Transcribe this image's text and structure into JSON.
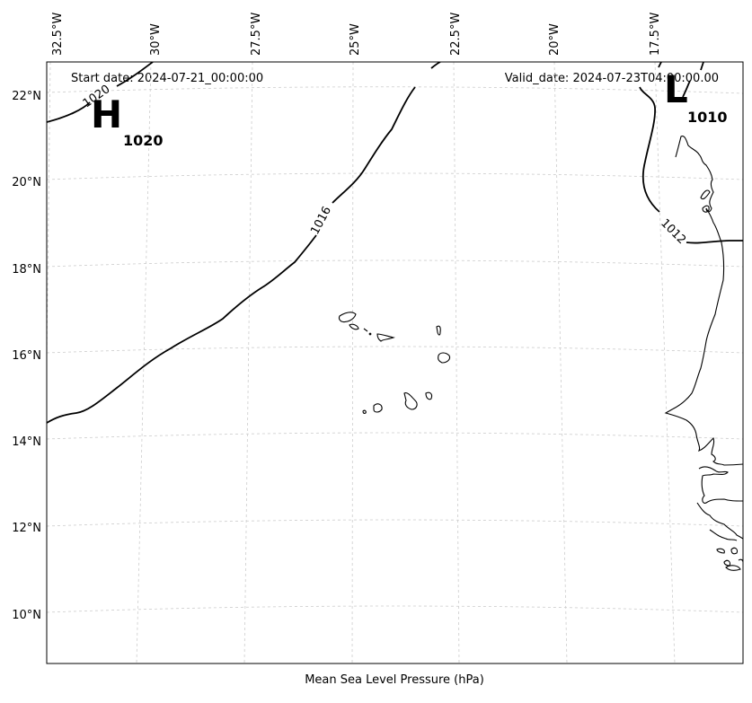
{
  "header": {
    "start_date": "Start date: 2024-07-21_00:00:00",
    "valid_date": "Valid_date: 2024-07-23T04:00:00.00"
  },
  "xlabel": "Mean Sea Level Pressure (hPa)",
  "lon_ticks": [
    "32.5°W",
    "30°W",
    "27.5°W",
    "25°W",
    "22.5°W",
    "20°W",
    "17.5°W"
  ],
  "lat_ticks": [
    "22°N",
    "20°N",
    "18°N",
    "16°N",
    "14°N",
    "12°N",
    "10°N"
  ],
  "contour_labels": [
    "1020",
    "1016",
    "1012"
  ],
  "pressure_centers": [
    {
      "type": "H",
      "value": "1020"
    },
    {
      "type": "L",
      "value": "1010"
    }
  ]
}
